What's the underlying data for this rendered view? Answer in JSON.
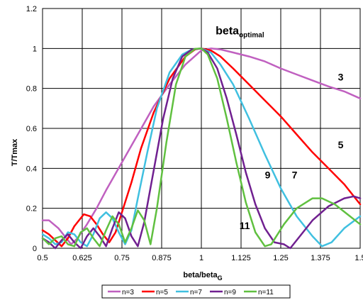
{
  "chart_data": {
    "type": "line",
    "xlabel": "beta/beta",
    "xlabel_sub": "G",
    "ylabel": "T/Tmax",
    "xlim": [
      0.5,
      1.5
    ],
    "ylim": [
      0,
      1.2
    ],
    "x_ticks": [
      "0.5",
      "0.625",
      "0.75",
      "0.875",
      "1",
      "1.125",
      "1.25",
      "1.375",
      "1.5"
    ],
    "y_ticks": [
      "0",
      "0.2",
      "0.4",
      "0.6",
      "0.8",
      "1",
      "1.2"
    ],
    "x_tick_values": [
      0.5,
      0.625,
      0.75,
      0.875,
      1,
      1.125,
      1.25,
      1.375,
      1.5
    ],
    "y_tick_values": [
      0,
      0.2,
      0.4,
      0.6,
      0.8,
      1,
      1.2
    ],
    "grid": true,
    "legend_position": "bottom",
    "series": [
      {
        "name": "n=3",
        "color": "#c060c0",
        "points": [
          [
            0.5,
            0.14
          ],
          [
            0.52,
            0.14
          ],
          [
            0.55,
            0.1
          ],
          [
            0.57,
            0.06
          ],
          [
            0.59,
            0.02
          ],
          [
            0.61,
            0.05
          ],
          [
            0.64,
            0.12
          ],
          [
            0.67,
            0.2
          ],
          [
            0.7,
            0.29
          ],
          [
            0.75,
            0.43
          ],
          [
            0.8,
            0.57
          ],
          [
            0.85,
            0.71
          ],
          [
            0.9,
            0.82
          ],
          [
            0.95,
            0.92
          ],
          [
            1.0,
            0.99
          ],
          [
            1.03,
            1.0
          ],
          [
            1.06,
            0.995
          ],
          [
            1.1,
            0.98
          ],
          [
            1.15,
            0.96
          ],
          [
            1.2,
            0.935
          ],
          [
            1.25,
            0.9
          ],
          [
            1.3,
            0.87
          ],
          [
            1.35,
            0.84
          ],
          [
            1.4,
            0.81
          ],
          [
            1.45,
            0.785
          ],
          [
            1.5,
            0.75
          ]
        ]
      },
      {
        "name": "n=5",
        "color": "#ff0000",
        "points": [
          [
            0.5,
            0.09
          ],
          [
            0.52,
            0.07
          ],
          [
            0.54,
            0.04
          ],
          [
            0.56,
            0.01
          ],
          [
            0.58,
            0.05
          ],
          [
            0.6,
            0.11
          ],
          [
            0.63,
            0.17
          ],
          [
            0.65,
            0.16
          ],
          [
            0.67,
            0.12
          ],
          [
            0.69,
            0.07
          ],
          [
            0.71,
            0.03
          ],
          [
            0.73,
            0.08
          ],
          [
            0.75,
            0.18
          ],
          [
            0.78,
            0.33
          ],
          [
            0.81,
            0.5
          ],
          [
            0.85,
            0.68
          ],
          [
            0.9,
            0.85
          ],
          [
            0.95,
            0.96
          ],
          [
            0.98,
            0.995
          ],
          [
            1.0,
            1.0
          ],
          [
            1.03,
            0.99
          ],
          [
            1.06,
            0.96
          ],
          [
            1.1,
            0.9
          ],
          [
            1.15,
            0.82
          ],
          [
            1.2,
            0.74
          ],
          [
            1.25,
            0.66
          ],
          [
            1.3,
            0.57
          ],
          [
            1.35,
            0.48
          ],
          [
            1.4,
            0.4
          ],
          [
            1.45,
            0.32
          ],
          [
            1.5,
            0.22
          ]
        ]
      },
      {
        "name": "n=7",
        "color": "#40c0e0",
        "points": [
          [
            0.5,
            0.07
          ],
          [
            0.52,
            0.05
          ],
          [
            0.54,
            0.02
          ],
          [
            0.56,
            0.03
          ],
          [
            0.58,
            0.08
          ],
          [
            0.6,
            0.07
          ],
          [
            0.62,
            0.03
          ],
          [
            0.64,
            0.01
          ],
          [
            0.66,
            0.07
          ],
          [
            0.68,
            0.15
          ],
          [
            0.7,
            0.18
          ],
          [
            0.72,
            0.15
          ],
          [
            0.74,
            0.08
          ],
          [
            0.76,
            0.02
          ],
          [
            0.78,
            0.09
          ],
          [
            0.8,
            0.25
          ],
          [
            0.83,
            0.48
          ],
          [
            0.86,
            0.7
          ],
          [
            0.9,
            0.88
          ],
          [
            0.94,
            0.97
          ],
          [
            0.97,
            0.995
          ],
          [
            1.0,
            1.0
          ],
          [
            1.03,
            0.98
          ],
          [
            1.06,
            0.92
          ],
          [
            1.1,
            0.82
          ],
          [
            1.15,
            0.65
          ],
          [
            1.2,
            0.47
          ],
          [
            1.25,
            0.3
          ],
          [
            1.3,
            0.16
          ],
          [
            1.35,
            0.06
          ],
          [
            1.38,
            0.01
          ],
          [
            1.41,
            0.03
          ],
          [
            1.45,
            0.1
          ],
          [
            1.5,
            0.16
          ]
        ]
      },
      {
        "name": "n=9",
        "color": "#702090",
        "points": [
          [
            0.5,
            0.05
          ],
          [
            0.52,
            0.03
          ],
          [
            0.54,
            0.0
          ],
          [
            0.56,
            0.04
          ],
          [
            0.58,
            0.07
          ],
          [
            0.6,
            0.03
          ],
          [
            0.62,
            0.0
          ],
          [
            0.64,
            0.06
          ],
          [
            0.66,
            0.1
          ],
          [
            0.68,
            0.06
          ],
          [
            0.7,
            0.01
          ],
          [
            0.72,
            0.1
          ],
          [
            0.74,
            0.18
          ],
          [
            0.76,
            0.15
          ],
          [
            0.78,
            0.06
          ],
          [
            0.8,
            0.01
          ],
          [
            0.82,
            0.13
          ],
          [
            0.85,
            0.39
          ],
          [
            0.88,
            0.65
          ],
          [
            0.91,
            0.85
          ],
          [
            0.94,
            0.96
          ],
          [
            0.97,
            0.995
          ],
          [
            1.0,
            1.0
          ],
          [
            1.02,
            0.98
          ],
          [
            1.05,
            0.9
          ],
          [
            1.08,
            0.75
          ],
          [
            1.11,
            0.57
          ],
          [
            1.14,
            0.38
          ],
          [
            1.17,
            0.22
          ],
          [
            1.2,
            0.1
          ],
          [
            1.23,
            0.03
          ],
          [
            1.26,
            0.02
          ],
          [
            1.28,
            0.0
          ],
          [
            1.31,
            0.06
          ],
          [
            1.35,
            0.14
          ],
          [
            1.4,
            0.21
          ],
          [
            1.45,
            0.25
          ],
          [
            1.48,
            0.26
          ],
          [
            1.5,
            0.25
          ]
        ]
      },
      {
        "name": "n=11",
        "color": "#60c040",
        "points": [
          [
            0.5,
            0.05
          ],
          [
            0.52,
            0.02
          ],
          [
            0.54,
            0.05
          ],
          [
            0.56,
            0.06
          ],
          [
            0.58,
            0.02
          ],
          [
            0.6,
            0.01
          ],
          [
            0.62,
            0.08
          ],
          [
            0.64,
            0.1
          ],
          [
            0.66,
            0.05
          ],
          [
            0.68,
            0.01
          ],
          [
            0.7,
            0.09
          ],
          [
            0.72,
            0.16
          ],
          [
            0.74,
            0.12
          ],
          [
            0.76,
            0.03
          ],
          [
            0.78,
            0.1
          ],
          [
            0.8,
            0.19
          ],
          [
            0.82,
            0.14
          ],
          [
            0.84,
            0.02
          ],
          [
            0.86,
            0.2
          ],
          [
            0.89,
            0.53
          ],
          [
            0.92,
            0.82
          ],
          [
            0.95,
            0.96
          ],
          [
            0.98,
            0.998
          ],
          [
            1.0,
            1.0
          ],
          [
            1.02,
            0.97
          ],
          [
            1.05,
            0.85
          ],
          [
            1.08,
            0.65
          ],
          [
            1.11,
            0.43
          ],
          [
            1.14,
            0.23
          ],
          [
            1.17,
            0.08
          ],
          [
            1.2,
            0.01
          ],
          [
            1.22,
            0.02
          ],
          [
            1.26,
            0.12
          ],
          [
            1.3,
            0.2
          ],
          [
            1.35,
            0.25
          ],
          [
            1.38,
            0.25
          ],
          [
            1.42,
            0.22
          ],
          [
            1.46,
            0.17
          ],
          [
            1.5,
            0.12
          ]
        ]
      }
    ],
    "annotations": [
      {
        "text": "beta",
        "sub": "optimal",
        "x": 1.045,
        "y": 1.07,
        "size": 16
      },
      {
        "text": "3",
        "x": 1.43,
        "y": 0.84,
        "size": 14
      },
      {
        "text": "5",
        "x": 1.43,
        "y": 0.5,
        "size": 14
      },
      {
        "text": "7",
        "x": 1.285,
        "y": 0.35,
        "size": 14
      },
      {
        "text": "9",
        "x": 1.2,
        "y": 0.35,
        "size": 14
      },
      {
        "text": "11",
        "x": 1.12,
        "y": 0.095,
        "size": 14
      }
    ]
  }
}
